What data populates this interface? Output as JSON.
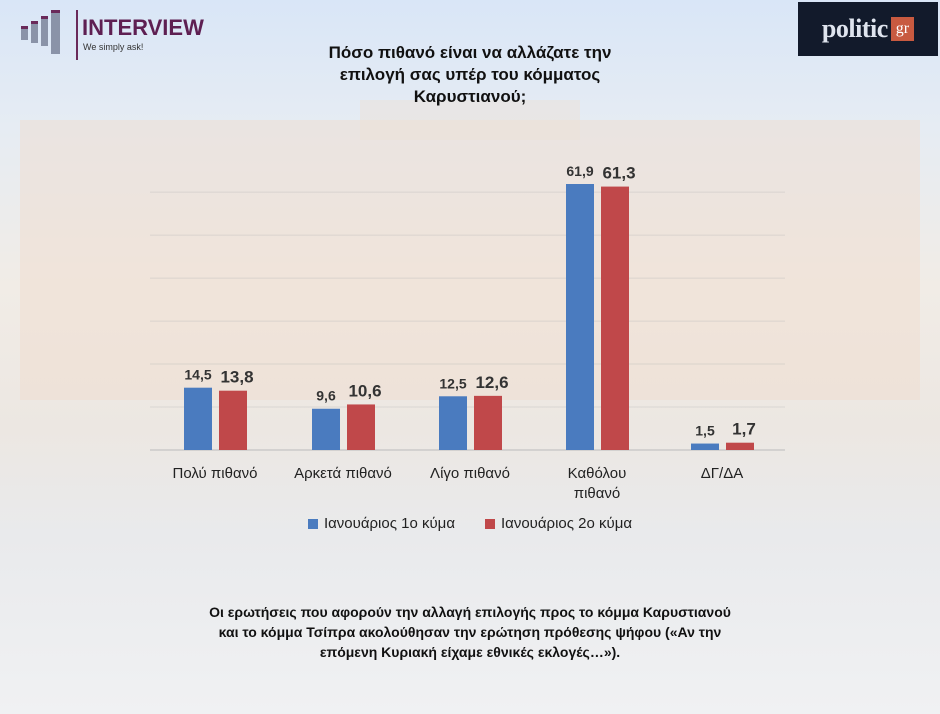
{
  "logos": {
    "left_brand": "INTERVIEW",
    "left_tagline": "We simply ask!",
    "right_brand": "politic",
    "right_suffix": "gr"
  },
  "chart_data": {
    "type": "bar",
    "title": "Πόσο πιθανό είναι να αλλάζατε την επιλογή σας υπέρ του κόμματος Καρυστιανού;",
    "title_lines": [
      "Πόσο πιθανό είναι να αλλάζατε την",
      "επιλογή σας υπέρ του κόμματος",
      "Καρυστιανού;"
    ],
    "categories": [
      "Πολύ πιθανό",
      "Αρκετά πιθανό",
      "Λίγο πιθανό",
      "Καθόλου πιθανό",
      "ΔΓ/ΔΑ"
    ],
    "category_lines": [
      [
        "Πολύ πιθανό"
      ],
      [
        "Αρκετά πιθανό"
      ],
      [
        "Λίγο πιθανό"
      ],
      [
        "Καθόλου",
        "πιθανό"
      ],
      [
        "ΔΓ/ΔΑ"
      ]
    ],
    "series": [
      {
        "name": "Ιανουάριος 1ο κύμα",
        "color": "#4a7bbf",
        "values": [
          14.5,
          9.6,
          12.5,
          61.9,
          1.5
        ],
        "labels": [
          "14,5",
          "9,6",
          "12,5",
          "61,9",
          "1,5"
        ]
      },
      {
        "name": "Ιανουάριος 2ο κύμα",
        "color": "#c0484a",
        "values": [
          13.8,
          10.6,
          12.6,
          61.3,
          1.7
        ],
        "labels": [
          "13,8",
          "10,6",
          "12,6",
          "61,3",
          "1,7"
        ]
      }
    ],
    "legend_position": "bottom",
    "ylim": [
      0,
      70
    ],
    "grid": true
  },
  "note": {
    "lines": [
      "Οι ερωτήσεις που αφορούν την αλλαγή επιλογής προς το κόμμα Καρυστιανού",
      "και το κόμμα Τσίπρα ακολούθησαν την ερώτηση πρόθεσης ψήφου («Αν την",
      "επόμενη Κυριακή είχαμε εθνικές εκλογές…»)."
    ]
  }
}
